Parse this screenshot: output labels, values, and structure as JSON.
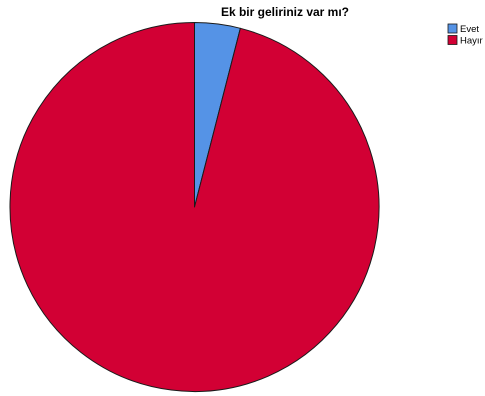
{
  "chart_data": {
    "type": "pie",
    "title": "Ek bir geliriniz var mı?",
    "categories": [
      "Evet",
      "Hayır"
    ],
    "values": [
      4,
      96
    ],
    "colors": [
      "#5593E6",
      "#D20034"
    ],
    "legend_position": "top-right",
    "start_angle_deg": 0,
    "direction": "clockwise"
  }
}
